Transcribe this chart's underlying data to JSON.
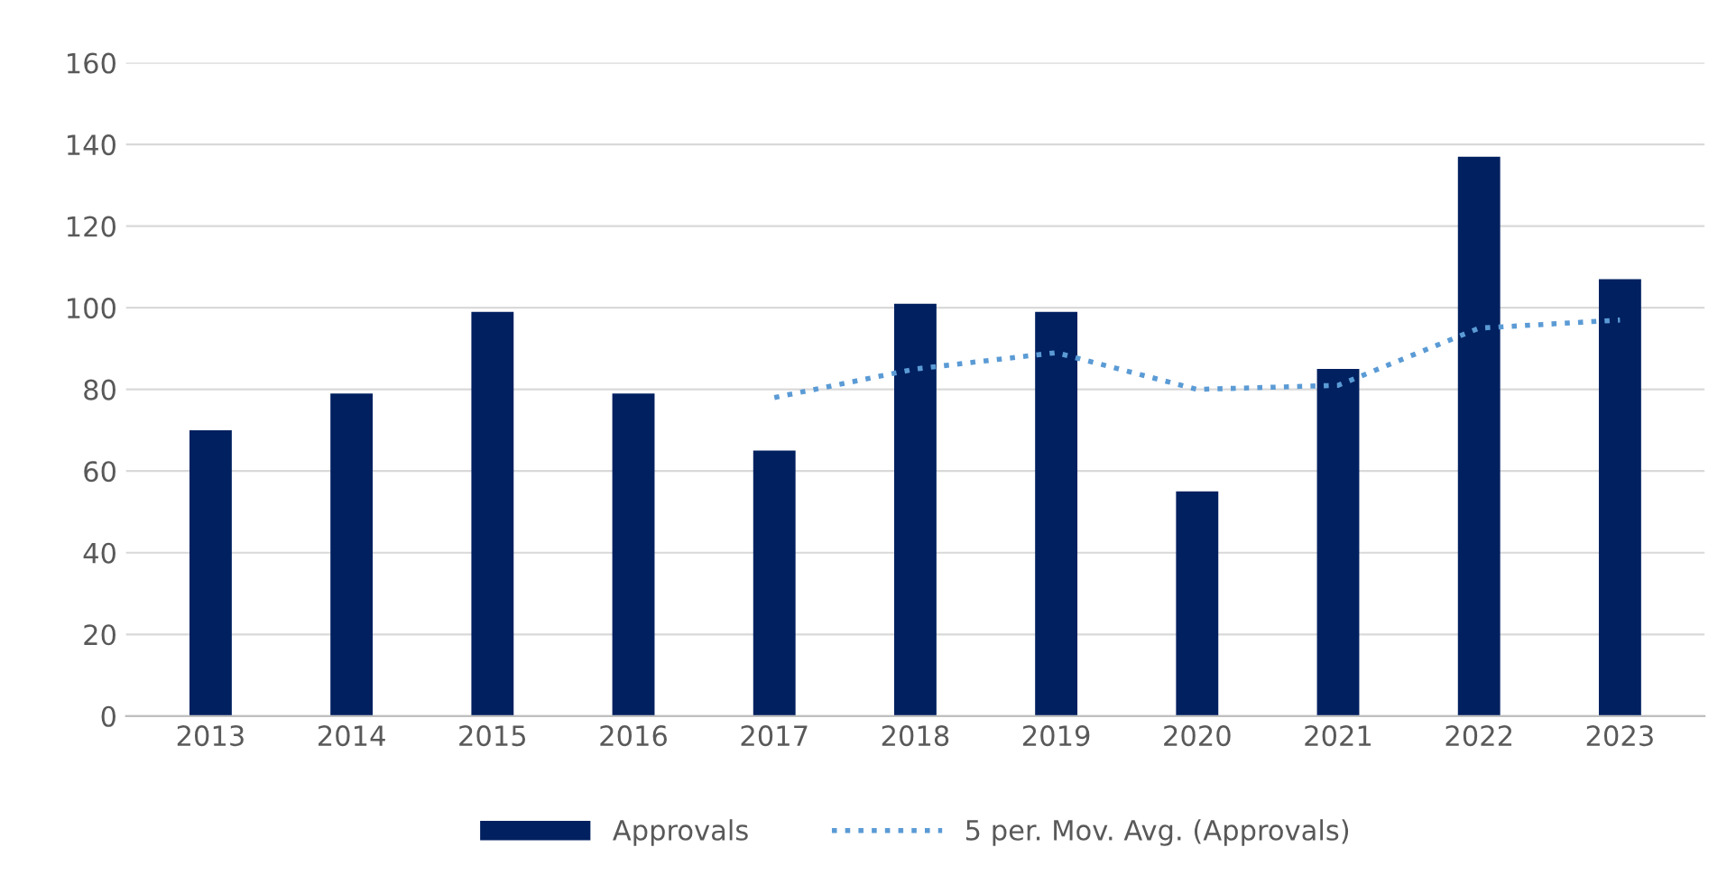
{
  "chart_data": {
    "type": "bar",
    "categories": [
      "2013",
      "2014",
      "2015",
      "2016",
      "2017",
      "2018",
      "2019",
      "2020",
      "2021",
      "2022",
      "2023"
    ],
    "series": [
      {
        "name": "Approvals",
        "color": "#002060",
        "values": [
          70,
          79,
          99,
          79,
          65,
          101,
          99,
          55,
          85,
          137,
          107
        ]
      },
      {
        "name": "5 per. Mov. Avg. (Approvals)",
        "type": "line",
        "color": "#5b9bd5",
        "line_style": "dotted",
        "values": [
          null,
          null,
          null,
          null,
          78,
          85,
          89,
          80,
          81,
          95,
          97
        ]
      }
    ],
    "ylim": [
      0,
      160
    ],
    "yticks": [
      0,
      20,
      40,
      60,
      80,
      100,
      120,
      140,
      160
    ],
    "grid": "y",
    "legend": "bottom"
  }
}
